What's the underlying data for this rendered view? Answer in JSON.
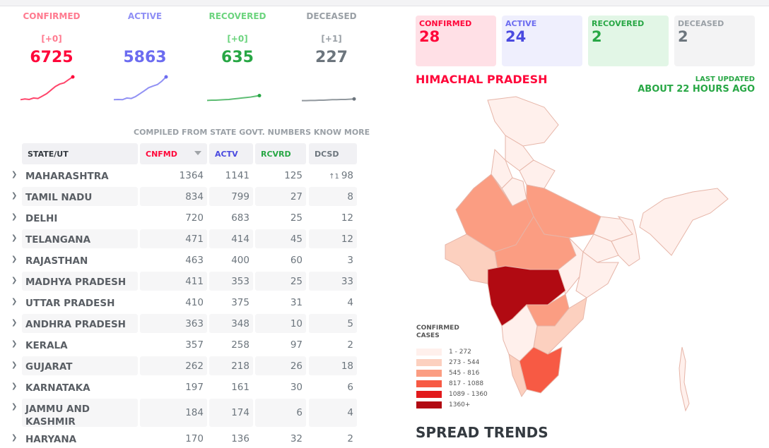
{
  "summary": {
    "confirmed": {
      "label": "CONFIRMED",
      "delta": "[+0]",
      "value": "6725",
      "trend": [
        0.05,
        0.08,
        0.06,
        0.12,
        0.1,
        0.2,
        0.3,
        0.45,
        0.6,
        0.7,
        0.75,
        0.88,
        1.0
      ]
    },
    "active": {
      "label": "ACTIVE",
      "delta": "",
      "value": "5863",
      "trend": [
        0.05,
        0.06,
        0.05,
        0.12,
        0.1,
        0.18,
        0.3,
        0.42,
        0.55,
        0.62,
        0.68,
        0.82,
        1.0
      ]
    },
    "recovered": {
      "label": "RECOVERED",
      "delta": "[+0]",
      "value": "635",
      "trend": [
        0.02,
        0.03,
        0.03,
        0.04,
        0.05,
        0.06,
        0.08,
        0.1,
        0.12,
        0.14,
        0.16,
        0.19,
        0.22
      ]
    },
    "deceased": {
      "label": "DECEASED",
      "delta": "[+1]",
      "value": "227",
      "trend": [
        0.01,
        0.01,
        0.02,
        0.02,
        0.03,
        0.03,
        0.04,
        0.05,
        0.05,
        0.06,
        0.06,
        0.07,
        0.08
      ]
    }
  },
  "compiled_note": "COMPILED FROM STATE GOVT. NUMBERS KNOW MORE",
  "table": {
    "headers": {
      "state": "STATE/UT",
      "confirmed": "CNFMD",
      "active": "ACTV",
      "recovered": "RCVRD",
      "deceased": "DCSD"
    },
    "rows": [
      {
        "state": "MAHARASHTRA",
        "confirmed": "1364",
        "active": "1141",
        "recovered": "125",
        "deceased": "98",
        "deceased_delta": "↑1"
      },
      {
        "state": "TAMIL NADU",
        "confirmed": "834",
        "active": "799",
        "recovered": "27",
        "deceased": "8",
        "deceased_delta": ""
      },
      {
        "state": "DELHI",
        "confirmed": "720",
        "active": "683",
        "recovered": "25",
        "deceased": "12",
        "deceased_delta": ""
      },
      {
        "state": "TELANGANA",
        "confirmed": "471",
        "active": "414",
        "recovered": "45",
        "deceased": "12",
        "deceased_delta": ""
      },
      {
        "state": "RAJASTHAN",
        "confirmed": "463",
        "active": "400",
        "recovered": "60",
        "deceased": "3",
        "deceased_delta": ""
      },
      {
        "state": "MADHYA PRADESH",
        "confirmed": "411",
        "active": "353",
        "recovered": "25",
        "deceased": "33",
        "deceased_delta": ""
      },
      {
        "state": "UTTAR PRADESH",
        "confirmed": "410",
        "active": "375",
        "recovered": "31",
        "deceased": "4",
        "deceased_delta": ""
      },
      {
        "state": "ANDHRA PRADESH",
        "confirmed": "363",
        "active": "348",
        "recovered": "10",
        "deceased": "5",
        "deceased_delta": ""
      },
      {
        "state": "KERALA",
        "confirmed": "357",
        "active": "258",
        "recovered": "97",
        "deceased": "2",
        "deceased_delta": ""
      },
      {
        "state": "GUJARAT",
        "confirmed": "262",
        "active": "218",
        "recovered": "26",
        "deceased": "18",
        "deceased_delta": ""
      },
      {
        "state": "KARNATAKA",
        "confirmed": "197",
        "active": "161",
        "recovered": "30",
        "deceased": "6",
        "deceased_delta": ""
      },
      {
        "state": "JAMMU AND KASHMIR",
        "confirmed": "184",
        "active": "174",
        "recovered": "6",
        "deceased": "4",
        "deceased_delta": ""
      },
      {
        "state": "HARYANA",
        "confirmed": "170",
        "active": "136",
        "recovered": "32",
        "deceased": "2",
        "deceased_delta": ""
      }
    ]
  },
  "state_panel": {
    "confirmed": {
      "label": "CONFIRMED",
      "value": "28"
    },
    "active": {
      "label": "ACTIVE",
      "value": "24"
    },
    "recovered": {
      "label": "RECOVERED",
      "value": "2"
    },
    "deceased": {
      "label": "DECEASED",
      "value": "2"
    },
    "state_name": "HIMACHAL PRADESH",
    "last_updated_label": "LAST UPDATED",
    "last_updated_value": "ABOUT 22 HOURS AGO"
  },
  "legend": {
    "title_line1": "CONFIRMED",
    "title_line2": "CASES",
    "ranges": [
      {
        "label": "1 - 272",
        "color": "#fff0ec"
      },
      {
        "label": "273 - 544",
        "color": "#fcd0bf"
      },
      {
        "label": "545 - 816",
        "color": "#fb9d82"
      },
      {
        "label": "817 - 1088",
        "color": "#f75a44"
      },
      {
        "label": "1089 - 1360",
        "color": "#e21a1c"
      },
      {
        "label": "1360+",
        "color": "#b10a12"
      }
    ]
  },
  "section_heading": "SPREAD TRENDS",
  "colors": {
    "confirmed": "#ff073a",
    "active": "#6c6cf0",
    "recovered": "#28a745",
    "deceased": "#6c757d"
  }
}
